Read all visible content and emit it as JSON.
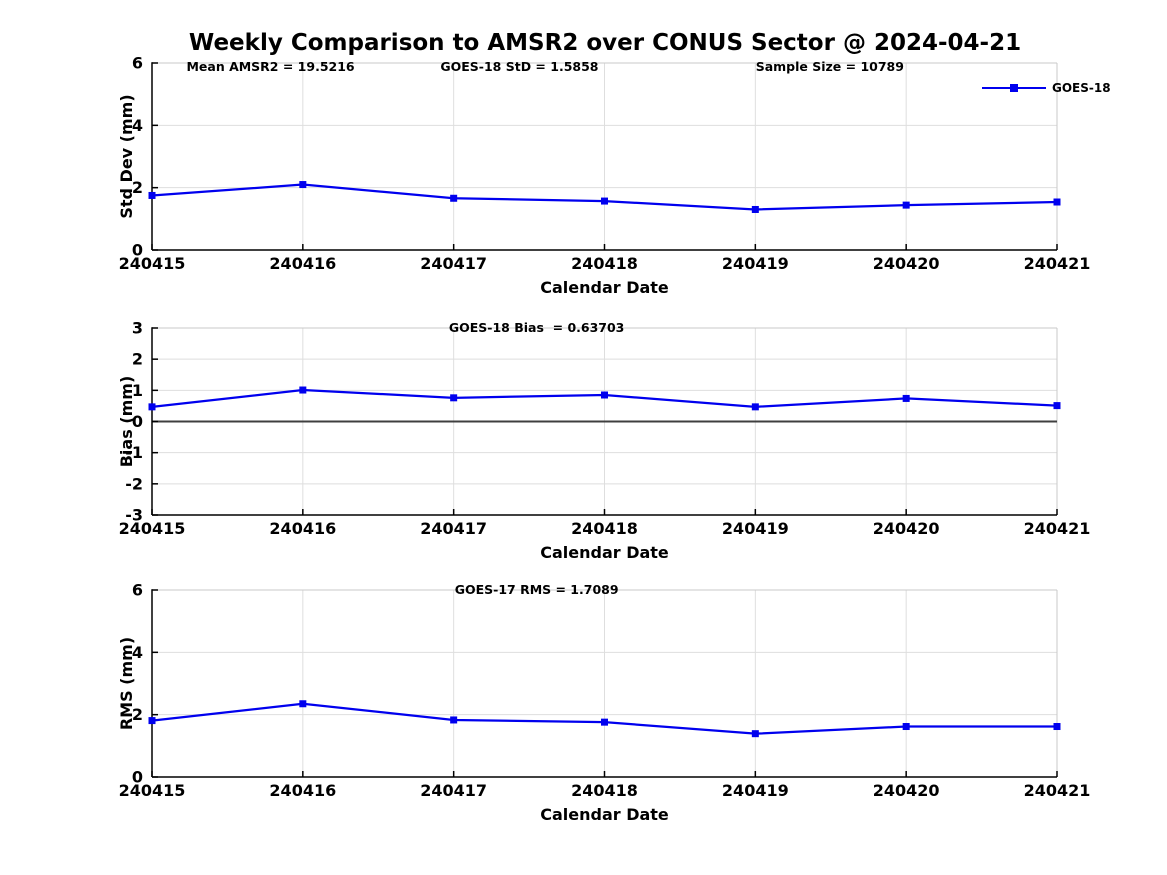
{
  "title": "Weekly Comparison to AMSR2 over CONUS Sector @ 2024-04-21",
  "colors": {
    "line": "#0000EE",
    "grid": "#DEDEDE",
    "spine_dark": "#000000",
    "spine_light": "#C9C9C9",
    "zero_line": "#3F3F3F",
    "text": "#000000",
    "background": "#FFFFFF"
  },
  "legend": {
    "label": "GOES-18",
    "position": "top-right"
  },
  "chart_data": [
    {
      "type": "line",
      "panel": "std-dev",
      "categories": [
        "240415",
        "240416",
        "240417",
        "240418",
        "240419",
        "240420",
        "240421"
      ],
      "series": [
        {
          "name": "GOES-18",
          "values": [
            1.75,
            2.1,
            1.66,
            1.57,
            1.3,
            1.44,
            1.54
          ]
        }
      ],
      "xlabel": "Calendar Date",
      "ylabel": "Std Dev (mm)",
      "ylim": [
        0,
        6
      ],
      "yticks": [
        0,
        2,
        4,
        6
      ],
      "grid": true,
      "marker": "square",
      "annotations": [
        "Mean AMSR2 = 19.5216",
        "GOES-18 StD = 1.5858",
        "Sample Size = 10789"
      ],
      "legend_entries": [
        "GOES-18"
      ]
    },
    {
      "type": "line",
      "panel": "bias",
      "categories": [
        "240415",
        "240416",
        "240417",
        "240418",
        "240419",
        "240420",
        "240421"
      ],
      "series": [
        {
          "name": "GOES-18",
          "values": [
            0.47,
            1.01,
            0.76,
            0.85,
            0.47,
            0.74,
            0.51
          ]
        }
      ],
      "xlabel": "Calendar Date",
      "ylabel": "Bias (mm)",
      "ylim": [
        -3,
        3
      ],
      "yticks": [
        -3,
        -2,
        -1,
        0,
        1,
        2,
        3
      ],
      "grid": true,
      "marker": "square",
      "zero_line": true,
      "annotations": [
        "GOES-18 Bias  = 0.63703"
      ]
    },
    {
      "type": "line",
      "panel": "rms",
      "categories": [
        "240415",
        "240416",
        "240417",
        "240418",
        "240419",
        "240420",
        "240421"
      ],
      "series": [
        {
          "name": "GOES-18",
          "values": [
            1.81,
            2.35,
            1.83,
            1.76,
            1.39,
            1.62,
            1.62
          ]
        }
      ],
      "xlabel": "Calendar Date",
      "ylabel": "RMS (mm)",
      "ylim": [
        0,
        6
      ],
      "yticks": [
        0,
        2,
        4,
        6
      ],
      "grid": true,
      "marker": "square",
      "annotations": [
        "GOES-17 RMS = 1.7089"
      ]
    }
  ]
}
